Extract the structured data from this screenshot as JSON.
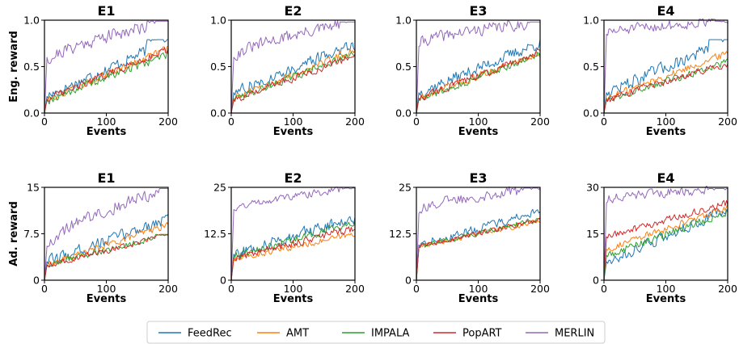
{
  "chart_data": {
    "type": "line",
    "rows": [
      {
        "ylabel": "Eng. reward",
        "panels": [
          {
            "title": "E1",
            "xlabel": "Events",
            "xlim": [
              0,
              200
            ],
            "xticks": [
              0,
              100,
              200
            ],
            "ylim": [
              0,
              1
            ],
            "yticks": [
              0.0,
              0.5,
              1.0
            ],
            "ytick_labels": [
              "0.0",
              "0.5",
              "1.0"
            ],
            "series": [
              {
                "name": "FeedRec",
                "start": 0.18,
                "end": 0.78,
                "noise": 0.08,
                "plateau_from": 165,
                "plateau": 0.79
              },
              {
                "name": "AMT",
                "start": 0.15,
                "end": 0.7,
                "noise": 0.05
              },
              {
                "name": "IMPALA",
                "start": 0.14,
                "end": 0.64,
                "noise": 0.06
              },
              {
                "name": "PopART",
                "start": 0.15,
                "end": 0.69,
                "noise": 0.05
              },
              {
                "name": "MERLIN",
                "start": 0.55,
                "end": 0.99,
                "noise": 0.09,
                "jump": 0.6,
                "plateau_from": 165,
                "plateau": 0.99
              }
            ]
          },
          {
            "title": "E2",
            "xlabel": "Events",
            "xlim": [
              0,
              200
            ],
            "xticks": [
              0,
              100,
              200
            ],
            "ylim": [
              0,
              1
            ],
            "yticks": [
              0.0,
              0.5,
              1.0
            ],
            "ytick_labels": [
              "0.0",
              "0.5",
              "1.0"
            ],
            "series": [
              {
                "name": "FeedRec",
                "start": 0.22,
                "end": 0.75,
                "noise": 0.08
              },
              {
                "name": "AMT",
                "start": 0.16,
                "end": 0.68,
                "noise": 0.05
              },
              {
                "name": "IMPALA",
                "start": 0.15,
                "end": 0.64,
                "noise": 0.05
              },
              {
                "name": "PopART",
                "start": 0.14,
                "end": 0.62,
                "noise": 0.05
              },
              {
                "name": "MERLIN",
                "start": 0.6,
                "end": 0.98,
                "noise": 0.08,
                "jump": 0.6,
                "plateau_from": 175,
                "plateau": 0.98
              }
            ]
          },
          {
            "title": "E3",
            "xlabel": "Events",
            "xlim": [
              0,
              200
            ],
            "xticks": [
              0,
              100,
              200
            ],
            "ylim": [
              0,
              1
            ],
            "yticks": [
              0.0,
              0.5,
              1.0
            ],
            "ytick_labels": [
              "0.0",
              "0.5",
              "1.0"
            ],
            "series": [
              {
                "name": "FeedRec",
                "start": 0.22,
                "end": 0.76,
                "noise": 0.08
              },
              {
                "name": "AMT",
                "start": 0.16,
                "end": 0.65,
                "noise": 0.05
              },
              {
                "name": "IMPALA",
                "start": 0.15,
                "end": 0.63,
                "noise": 0.05
              },
              {
                "name": "PopART",
                "start": 0.16,
                "end": 0.66,
                "noise": 0.05
              },
              {
                "name": "MERLIN",
                "start": 0.75,
                "end": 0.98,
                "noise": 0.08,
                "jump": 0.72,
                "plateau_from": 180,
                "plateau": 0.98
              }
            ]
          },
          {
            "title": "E4",
            "xlabel": "Events",
            "xlim": [
              0,
              200
            ],
            "xticks": [
              0,
              100,
              200
            ],
            "ylim": [
              0,
              1
            ],
            "yticks": [
              0.0,
              0.5,
              1.0
            ],
            "ytick_labels": [
              "0.0",
              "0.5",
              "1.0"
            ],
            "series": [
              {
                "name": "FeedRec",
                "start": 0.22,
                "end": 0.78,
                "noise": 0.09,
                "plateau_from": 170,
                "plateau": 0.79
              },
              {
                "name": "AMT",
                "start": 0.16,
                "end": 0.65,
                "noise": 0.05
              },
              {
                "name": "IMPALA",
                "start": 0.15,
                "end": 0.55,
                "noise": 0.05
              },
              {
                "name": "PopART",
                "start": 0.14,
                "end": 0.54,
                "noise": 0.05
              },
              {
                "name": "MERLIN",
                "start": 0.86,
                "end": 0.99,
                "noise": 0.07,
                "jump": 0.85,
                "plateau_from": 180,
                "plateau": 0.99
              }
            ]
          }
        ]
      },
      {
        "ylabel": "Ad. reward",
        "panels": [
          {
            "title": "E1",
            "xlabel": "Events",
            "xlim": [
              0,
              200
            ],
            "xticks": [
              0,
              100,
              200
            ],
            "ylim": [
              0,
              15
            ],
            "yticks": [
              0,
              7.5,
              15
            ],
            "ytick_labels": [
              "0",
              "7.5",
              "15"
            ],
            "series": [
              {
                "name": "FeedRec",
                "start": 3.0,
                "end": 10.0,
                "noise": 1.2
              },
              {
                "name": "AMT",
                "start": 2.5,
                "end": 9.0,
                "noise": 0.7
              },
              {
                "name": "IMPALA",
                "start": 2.5,
                "end": 7.4,
                "noise": 0.6,
                "plateau_from": 180,
                "plateau": 7.4
              },
              {
                "name": "PopART",
                "start": 2.4,
                "end": 7.3,
                "noise": 0.6,
                "plateau_from": 180,
                "plateau": 7.3
              },
              {
                "name": "MERLIN",
                "start": 5.5,
                "end": 14.8,
                "noise": 1.3,
                "jump": 5.5,
                "plateau_from": 185,
                "plateau": 14.8
              }
            ]
          },
          {
            "title": "E2",
            "xlabel": "Events",
            "xlim": [
              0,
              200
            ],
            "xticks": [
              0,
              100,
              200
            ],
            "ylim": [
              0,
              25
            ],
            "yticks": [
              0,
              12.5,
              25
            ],
            "ytick_labels": [
              "0",
              "12.5",
              "25"
            ],
            "series": [
              {
                "name": "FeedRec",
                "start": 7.0,
                "end": 17.0,
                "noise": 2.0
              },
              {
                "name": "AMT",
                "start": 5.5,
                "end": 12.5,
                "noise": 1.0
              },
              {
                "name": "IMPALA",
                "start": 6.5,
                "end": 15.5,
                "noise": 1.3
              },
              {
                "name": "PopART",
                "start": 6.0,
                "end": 14.0,
                "noise": 1.3
              },
              {
                "name": "MERLIN",
                "start": 19.0,
                "end": 24.8,
                "noise": 1.2,
                "jump": 19.0,
                "plateau_from": 180,
                "plateau": 24.8
              }
            ]
          },
          {
            "title": "E3",
            "xlabel": "Events",
            "xlim": [
              0,
              200
            ],
            "xticks": [
              0,
              100,
              200
            ],
            "ylim": [
              0,
              25
            ],
            "yticks": [
              0,
              12.5,
              25
            ],
            "ytick_labels": [
              "0",
              "12.5",
              "25"
            ],
            "series": [
              {
                "name": "FeedRec",
                "start": 9.5,
                "end": 18.5,
                "noise": 1.5
              },
              {
                "name": "AMT",
                "start": 9.0,
                "end": 16.0,
                "noise": 0.9
              },
              {
                "name": "IMPALA",
                "start": 9.0,
                "end": 16.5,
                "noise": 0.9
              },
              {
                "name": "PopART",
                "start": 9.0,
                "end": 16.5,
                "noise": 0.9
              },
              {
                "name": "MERLIN",
                "start": 19.0,
                "end": 24.8,
                "noise": 1.8,
                "jump": 18.0,
                "plateau_from": 170,
                "plateau": 24.8
              }
            ]
          },
          {
            "title": "E4",
            "xlabel": "Events",
            "xlim": [
              0,
              200
            ],
            "xticks": [
              0,
              100,
              200
            ],
            "ylim": [
              0,
              30
            ],
            "yticks": [
              0,
              15,
              30
            ],
            "ytick_labels": [
              "0",
              "15",
              "30"
            ],
            "series": [
              {
                "name": "FeedRec",
                "start": 6.0,
                "end": 23.0,
                "noise": 2.2
              },
              {
                "name": "AMT",
                "start": 10.0,
                "end": 23.5,
                "noise": 1.4
              },
              {
                "name": "IMPALA",
                "start": 8.0,
                "end": 22.0,
                "noise": 1.6
              },
              {
                "name": "PopART",
                "start": 14.0,
                "end": 25.0,
                "noise": 1.4
              },
              {
                "name": "MERLIN",
                "start": 26.0,
                "end": 29.5,
                "noise": 1.8,
                "jump": 25.0,
                "plateau_from": 170,
                "plateau": 29.6
              }
            ]
          }
        ]
      }
    ],
    "legend": {
      "placement": "bottom-center",
      "entries": [
        "FeedRec",
        "AMT",
        "IMPALA",
        "PopART",
        "MERLIN"
      ]
    },
    "colors": {
      "FeedRec": "#1f77b4",
      "AMT": "#ff7f0e",
      "IMPALA": "#2ca02c",
      "PopART": "#d62728",
      "MERLIN": "#9467bd"
    },
    "grid": false
  }
}
